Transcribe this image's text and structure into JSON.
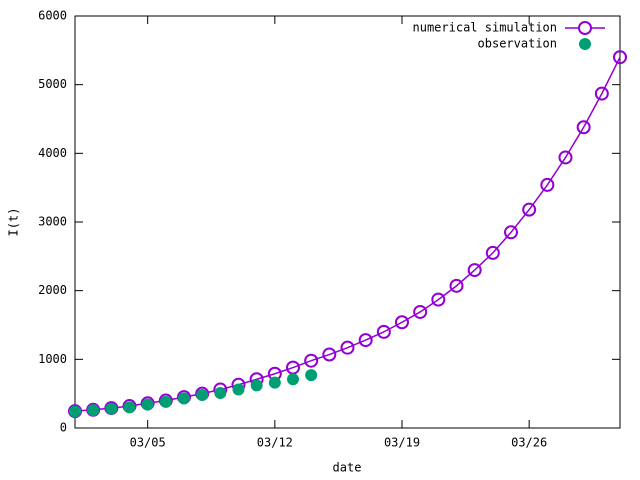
{
  "chart_data": {
    "type": "line",
    "xlabel": "date",
    "ylabel": "I(t)",
    "x": [
      1,
      2,
      3,
      4,
      5,
      6,
      7,
      8,
      9,
      10,
      11,
      12,
      13,
      14,
      15,
      16,
      17,
      18,
      19,
      20,
      21,
      22,
      23,
      24,
      25,
      26,
      27,
      28,
      29,
      30,
      31
    ],
    "xlim": [
      1,
      31
    ],
    "xticks": [
      {
        "value": 5,
        "label": "03/05"
      },
      {
        "value": 12,
        "label": "03/12"
      },
      {
        "value": 19,
        "label": "03/19"
      },
      {
        "value": 26,
        "label": "03/26"
      }
    ],
    "ylim": [
      0,
      6000
    ],
    "yticks": [
      0,
      1000,
      2000,
      3000,
      4000,
      5000,
      6000
    ],
    "grid": false,
    "legend": "top-right",
    "series": [
      {
        "name": "numerical simulation",
        "color": "#9400d3",
        "style": "line-circles",
        "values": [
          245,
          265,
          290,
          320,
          360,
          400,
          450,
          500,
          560,
          630,
          710,
          790,
          880,
          980,
          1070,
          1170,
          1280,
          1400,
          1540,
          1690,
          1870,
          2070,
          2300,
          2550,
          2850,
          3180,
          3540,
          3940,
          4380,
          4870,
          5400
        ]
      },
      {
        "name": "observation",
        "color": "#009e73",
        "style": "dots",
        "values": [
          240,
          260,
          280,
          300,
          340,
          380,
          430,
          480,
          510,
          560,
          620,
          660,
          710,
          770,
          null,
          null,
          null,
          null,
          null,
          null,
          null,
          null,
          null,
          null,
          null,
          null,
          null,
          null,
          null,
          null,
          null
        ]
      }
    ]
  }
}
